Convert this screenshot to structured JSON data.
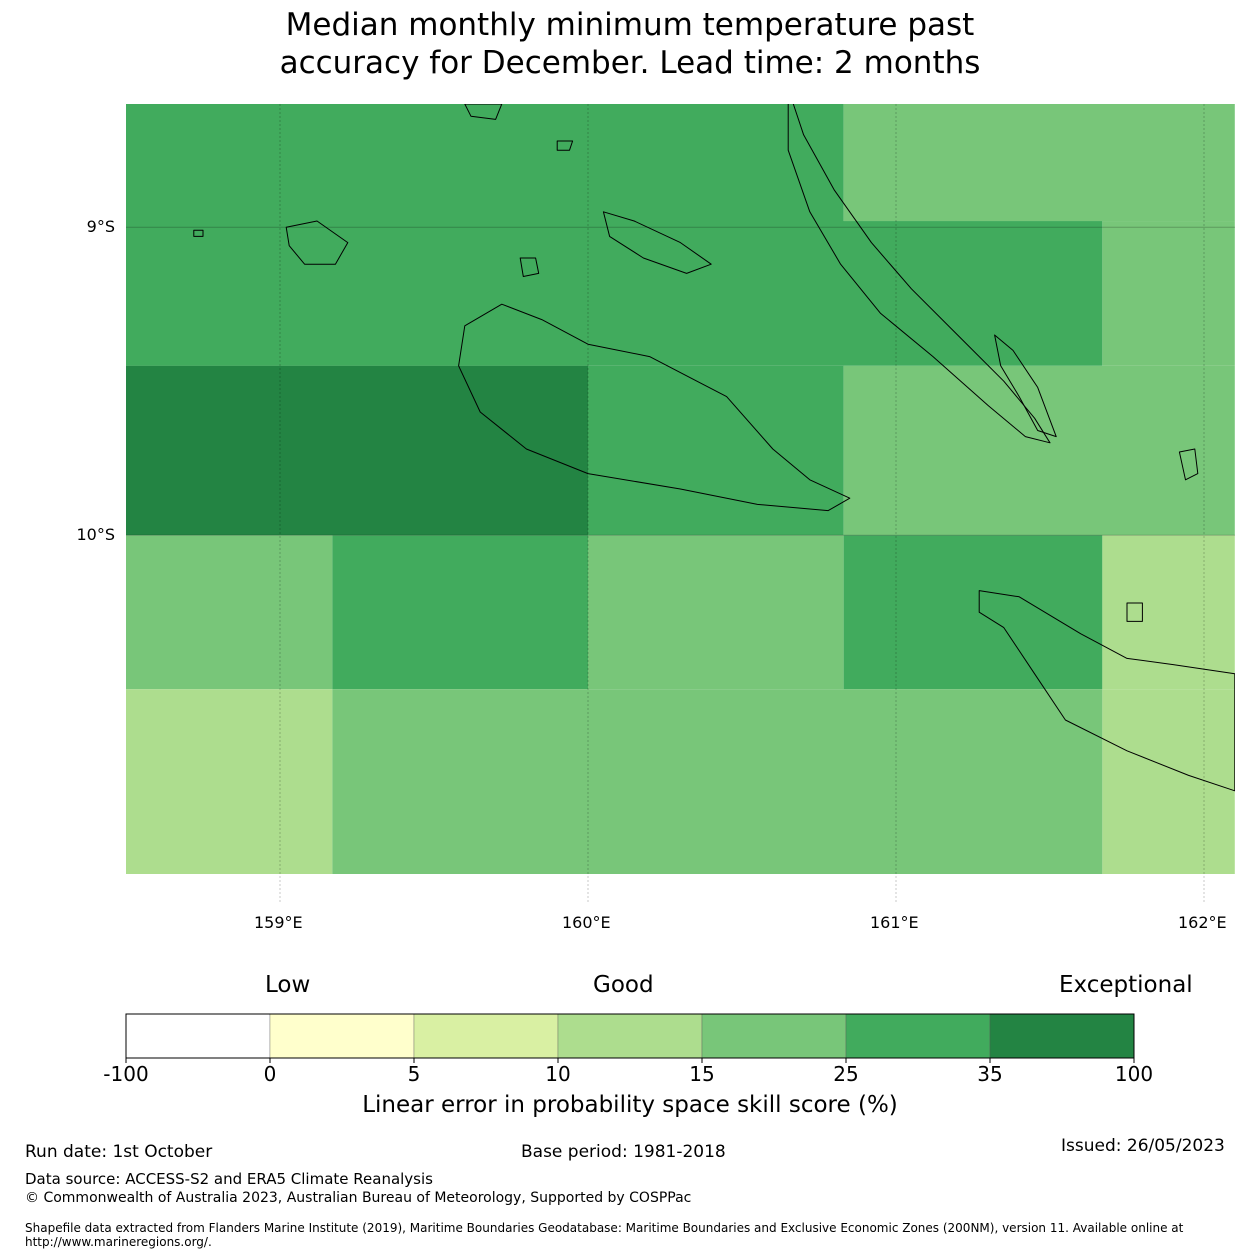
{
  "title": {
    "line1": "Median monthly minimum temperature past",
    "line2": "accuracy for December. Lead time: 2 months"
  },
  "map": {
    "lon_range": [
      158.5,
      162.1
    ],
    "lat_range": [
      -11.1,
      -8.6
    ],
    "lon_ticks": [
      {
        "value": 159,
        "label": "159°E"
      },
      {
        "value": 160,
        "label": "160°E"
      },
      {
        "value": 161,
        "label": "161°E"
      },
      {
        "value": 162,
        "label": "162°E"
      }
    ],
    "lat_ticks": [
      {
        "value": -9,
        "label": "9°S"
      },
      {
        "value": -10,
        "label": "10°S"
      }
    ],
    "cells": [
      {
        "lon": [
          158.5,
          160.83
        ],
        "lat": [
          -9.05,
          -8.6
        ],
        "category": 5
      },
      {
        "lon": [
          160.83,
          162.1
        ],
        "lat": [
          -8.98,
          -8.6
        ],
        "category": 4
      },
      {
        "lon": [
          158.5,
          161.67
        ],
        "lat": [
          -9.45,
          -8.98
        ],
        "category": 5
      },
      {
        "lon": [
          161.67,
          162.1
        ],
        "lat": [
          -9.45,
          -8.98
        ],
        "category": 4
      },
      {
        "lon": [
          158.5,
          160.0
        ],
        "lat": [
          -9.5,
          -9.45
        ],
        "category": 5
      },
      {
        "lon": [
          158.5,
          160.0
        ],
        "lat": [
          -10.0,
          -9.45
        ],
        "category": 6
      },
      {
        "lon": [
          160.0,
          160.83
        ],
        "lat": [
          -10.0,
          -9.45
        ],
        "category": 5
      },
      {
        "lon": [
          160.83,
          162.1
        ],
        "lat": [
          -10.0,
          -9.45
        ],
        "category": 4
      },
      {
        "lon": [
          158.5,
          159.17
        ],
        "lat": [
          -10.5,
          -10.0
        ],
        "category": 4
      },
      {
        "lon": [
          159.17,
          160.0
        ],
        "lat": [
          -10.5,
          -10.0
        ],
        "category": 5
      },
      {
        "lon": [
          160.0,
          160.83
        ],
        "lat": [
          -10.5,
          -10.0
        ],
        "category": 4
      },
      {
        "lon": [
          160.83,
          161.67
        ],
        "lat": [
          -10.5,
          -10.0
        ],
        "category": 5
      },
      {
        "lon": [
          161.67,
          162.1
        ],
        "lat": [
          -10.5,
          -10.0
        ],
        "category": 3
      },
      {
        "lon": [
          158.5,
          159.17
        ],
        "lat": [
          -11.1,
          -10.5
        ],
        "category": 3
      },
      {
        "lon": [
          159.17,
          161.67
        ],
        "lat": [
          -11.1,
          -10.5
        ],
        "category": 4
      },
      {
        "lon": [
          161.67,
          162.1
        ],
        "lat": [
          -11.1,
          -10.5
        ],
        "category": 3
      }
    ],
    "islands": [
      {
        "name": "guadalcanal",
        "points": [
          [
            159.6,
            -9.32
          ],
          [
            159.72,
            -9.25
          ],
          [
            159.85,
            -9.3
          ],
          [
            160.0,
            -9.38
          ],
          [
            160.2,
            -9.42
          ],
          [
            160.45,
            -9.55
          ],
          [
            160.6,
            -9.72
          ],
          [
            160.72,
            -9.82
          ],
          [
            160.85,
            -9.88
          ],
          [
            160.78,
            -9.92
          ],
          [
            160.55,
            -9.9
          ],
          [
            160.3,
            -9.85
          ],
          [
            160.0,
            -9.8
          ],
          [
            159.8,
            -9.72
          ],
          [
            159.65,
            -9.6
          ],
          [
            159.58,
            -9.45
          ]
        ]
      },
      {
        "name": "malaita",
        "points": [
          [
            160.65,
            -8.55
          ],
          [
            160.7,
            -8.7
          ],
          [
            160.8,
            -8.88
          ],
          [
            160.92,
            -9.05
          ],
          [
            161.05,
            -9.2
          ],
          [
            161.2,
            -9.35
          ],
          [
            161.35,
            -9.5
          ],
          [
            161.45,
            -9.62
          ],
          [
            161.5,
            -9.7
          ],
          [
            161.42,
            -9.68
          ],
          [
            161.3,
            -9.58
          ],
          [
            161.12,
            -9.42
          ],
          [
            160.95,
            -9.28
          ],
          [
            160.82,
            -9.12
          ],
          [
            160.72,
            -8.95
          ],
          [
            160.65,
            -8.75
          ]
        ]
      },
      {
        "name": "small-malaita",
        "points": [
          [
            161.32,
            -9.35
          ],
          [
            161.38,
            -9.4
          ],
          [
            161.46,
            -9.52
          ],
          [
            161.52,
            -9.68
          ],
          [
            161.46,
            -9.66
          ],
          [
            161.4,
            -9.55
          ],
          [
            161.34,
            -9.45
          ]
        ]
      },
      {
        "name": "makira",
        "points": [
          [
            161.27,
            -10.18
          ],
          [
            161.4,
            -10.2
          ],
          [
            161.6,
            -10.32
          ],
          [
            161.75,
            -10.4
          ],
          [
            161.9,
            -10.42
          ],
          [
            162.1,
            -10.45
          ],
          [
            162.1,
            -10.83
          ],
          [
            161.95,
            -10.78
          ],
          [
            161.75,
            -10.7
          ],
          [
            161.55,
            -10.6
          ],
          [
            161.45,
            -10.45
          ],
          [
            161.35,
            -10.3
          ],
          [
            161.27,
            -10.25
          ]
        ]
      },
      {
        "name": "florida-islands",
        "points": [
          [
            160.05,
            -8.95
          ],
          [
            160.15,
            -8.98
          ],
          [
            160.3,
            -9.05
          ],
          [
            160.4,
            -9.12
          ],
          [
            160.32,
            -9.15
          ],
          [
            160.18,
            -9.1
          ],
          [
            160.07,
            -9.03
          ]
        ]
      },
      {
        "name": "russell-islands",
        "points": [
          [
            159.02,
            -9.0
          ],
          [
            159.12,
            -8.98
          ],
          [
            159.22,
            -9.05
          ],
          [
            159.18,
            -9.12
          ],
          [
            159.08,
            -9.12
          ],
          [
            159.03,
            -9.06
          ]
        ]
      },
      {
        "name": "savo",
        "points": [
          [
            159.78,
            -9.1
          ],
          [
            159.83,
            -9.1
          ],
          [
            159.84,
            -9.15
          ],
          [
            159.79,
            -9.16
          ]
        ]
      },
      {
        "name": "ulawa",
        "points": [
          [
            161.92,
            -9.73
          ],
          [
            161.97,
            -9.72
          ],
          [
            161.98,
            -9.8
          ],
          [
            161.94,
            -9.82
          ]
        ]
      },
      {
        "name": "three-sisters",
        "points": [
          [
            161.75,
            -10.22
          ],
          [
            161.8,
            -10.22
          ],
          [
            161.8,
            -10.28
          ],
          [
            161.75,
            -10.28
          ]
        ]
      },
      {
        "name": "north-islet-1",
        "points": [
          [
            159.6,
            -8.6
          ],
          [
            159.72,
            -8.6
          ],
          [
            159.7,
            -8.65
          ],
          [
            159.62,
            -8.64
          ]
        ]
      },
      {
        "name": "north-islet-2",
        "points": [
          [
            159.9,
            -8.72
          ],
          [
            159.95,
            -8.72
          ],
          [
            159.94,
            -8.75
          ],
          [
            159.9,
            -8.75
          ]
        ]
      },
      {
        "name": "west-islet",
        "points": [
          [
            158.72,
            -9.01
          ],
          [
            158.75,
            -9.01
          ],
          [
            158.75,
            -9.03
          ],
          [
            158.72,
            -9.03
          ]
        ]
      }
    ]
  },
  "colorbar": {
    "words": {
      "low": "Low",
      "good": "Good",
      "exceptional": "Exceptional"
    },
    "colors": [
      "#ffffff",
      "#ffffcc",
      "#d9f0a3",
      "#addd8e",
      "#78c679",
      "#41ab5d",
      "#238443"
    ],
    "ticks": [
      "-100",
      "0",
      "5",
      "10",
      "15",
      "25",
      "35",
      "100"
    ],
    "label": "Linear error in probability space skill score (%)"
  },
  "footer": {
    "run_date": "Run date: 1st October",
    "base_period": "Base period: 1981-2018",
    "issued": "Issued: 26/05/2023",
    "data_source": "Data source: ACCESS-S2 and ERA5 Climate Reanalysis",
    "copyright": "© Commonwealth of Australia 2023, Australian Bureau of Meteorology, Supported by COSPPac",
    "shapefile_line1": "Shapefile data extracted from Flanders Marine Institute (2019), Maritime Boundaries Geodatabase: Maritime Boundaries and Exclusive Economic Zones (200NM), version 11. Available online at",
    "shapefile_line2": "http://www.marineregions.org/."
  }
}
